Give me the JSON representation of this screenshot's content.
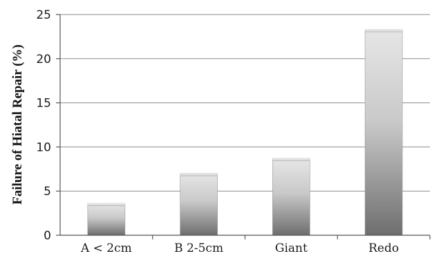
{
  "chart_data": {
    "type": "bar",
    "title": "",
    "xlabel": "",
    "ylabel": "Failure of Hiatal Repair (%)",
    "categories": [
      "A < 2cm",
      "B 2-5cm",
      "Giant",
      "Redo"
    ],
    "values": [
      3.6,
      7.0,
      8.7,
      23.3
    ],
    "ylim": [
      0,
      25
    ],
    "yticks": [
      "0",
      "5",
      "10",
      "15",
      "20",
      "25"
    ],
    "grid": true,
    "legend": "none",
    "bar_color_light": "#e6e6e6",
    "bar_color_dark": "#6e6e6e"
  }
}
